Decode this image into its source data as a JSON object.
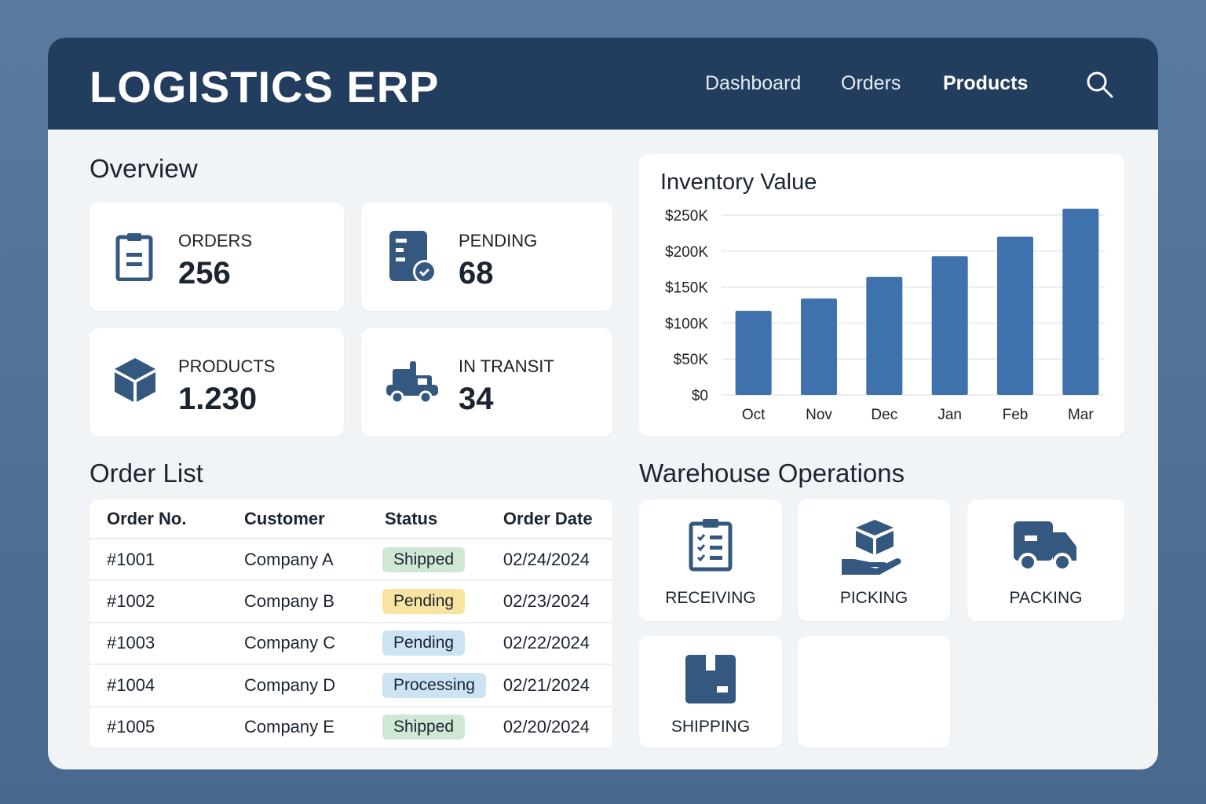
{
  "header": {
    "title": "LOGISTICS ERP",
    "nav": [
      "Dashboard",
      "Orders",
      "Products"
    ],
    "active": "Products"
  },
  "overview": {
    "title": "Overview",
    "stats": [
      {
        "label": "ORDERS",
        "value": "256",
        "icon": "clipboard-icon"
      },
      {
        "label": "PENDING",
        "value": "68",
        "icon": "document-check-icon"
      },
      {
        "label": "PRODUCTS",
        "value": "1.230",
        "icon": "box-icon"
      },
      {
        "label": "IN TRANSIT",
        "value": "34",
        "icon": "truck-icon"
      }
    ]
  },
  "orders": {
    "title": "Order List",
    "columns": [
      "Order No.",
      "Customer",
      "Status",
      "Order Date"
    ],
    "rows": [
      {
        "no": "#1001",
        "customer": "Company A",
        "status": "Shipped",
        "date": "02/24/2024",
        "color": "#cfe8d6"
      },
      {
        "no": "#1002",
        "customer": "Company B",
        "status": "Pending",
        "date": "02/23/2024",
        "color": "#f8e3a0"
      },
      {
        "no": "#1003",
        "customer": "Company C",
        "status": "Pending",
        "date": "02/22/2024",
        "color": "#cbe3f3"
      },
      {
        "no": "#1004",
        "customer": "Company D",
        "status": "Processing",
        "date": "02/21/2024",
        "color": "#cbe3f3"
      },
      {
        "no": "#1005",
        "customer": "Company E",
        "status": "Shipped",
        "date": "02/20/2024",
        "color": "#cfe8d6"
      }
    ]
  },
  "warehouse": {
    "title": "Warehouse Operations",
    "items": [
      "RECEIVING",
      "PICKING",
      "PACKING",
      "SHIPPING"
    ]
  },
  "chart_data": {
    "type": "bar",
    "title": "Inventory Value",
    "categories": [
      "Oct",
      "Nov",
      "Dec",
      "Jan",
      "Feb",
      "Mar"
    ],
    "values": [
      117000,
      134000,
      164000,
      193000,
      220000,
      259000
    ],
    "ylim": [
      0,
      250000
    ],
    "yticks": [
      "$0",
      "$50K",
      "$100K",
      "$150K",
      "$200K",
      "$250K"
    ],
    "xlabel": "",
    "ylabel": "",
    "grid": true,
    "color": "#3f72ad"
  }
}
